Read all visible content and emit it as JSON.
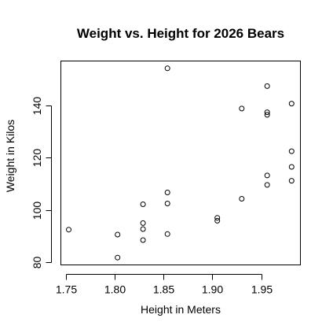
{
  "chart_data": {
    "type": "scatter",
    "title": "Weight vs. Height for 2026 Bears",
    "xlabel": "Height in Meters",
    "ylabel": "Weight in Kilos",
    "xlim": [
      1.745,
      1.99
    ],
    "ylim": [
      79,
      157
    ],
    "xticks": [
      1.75,
      1.8,
      1.85,
      1.9,
      1.95
    ],
    "xtick_labels": [
      "1.75",
      "1.80",
      "1.85",
      "1.90",
      "1.95"
    ],
    "yticks": [
      80,
      100,
      120,
      140
    ],
    "ytick_labels": [
      "80",
      "100",
      "120",
      "140"
    ],
    "grid": false,
    "legend": "none",
    "marker": "open-circle",
    "colors": {
      "points": "#000000",
      "axes": "#000000",
      "background": "#ffffff"
    },
    "points": [
      {
        "x": 1.753,
        "y": 92.5
      },
      {
        "x": 1.803,
        "y": 90.6
      },
      {
        "x": 1.803,
        "y": 81.8
      },
      {
        "x": 1.829,
        "y": 102.2
      },
      {
        "x": 1.829,
        "y": 95.0
      },
      {
        "x": 1.829,
        "y": 92.7
      },
      {
        "x": 1.829,
        "y": 88.5
      },
      {
        "x": 1.854,
        "y": 154.2
      },
      {
        "x": 1.854,
        "y": 106.7
      },
      {
        "x": 1.854,
        "y": 102.5
      },
      {
        "x": 1.854,
        "y": 90.8
      },
      {
        "x": 1.905,
        "y": 97.0
      },
      {
        "x": 1.905,
        "y": 95.9
      },
      {
        "x": 1.93,
        "y": 138.8
      },
      {
        "x": 1.93,
        "y": 104.3
      },
      {
        "x": 1.956,
        "y": 147.4
      },
      {
        "x": 1.956,
        "y": 137.4
      },
      {
        "x": 1.956,
        "y": 136.4
      },
      {
        "x": 1.956,
        "y": 113.2
      },
      {
        "x": 1.956,
        "y": 109.6
      },
      {
        "x": 1.981,
        "y": 140.7
      },
      {
        "x": 1.981,
        "y": 122.5
      },
      {
        "x": 1.981,
        "y": 116.5
      },
      {
        "x": 1.981,
        "y": 111.2
      }
    ]
  }
}
